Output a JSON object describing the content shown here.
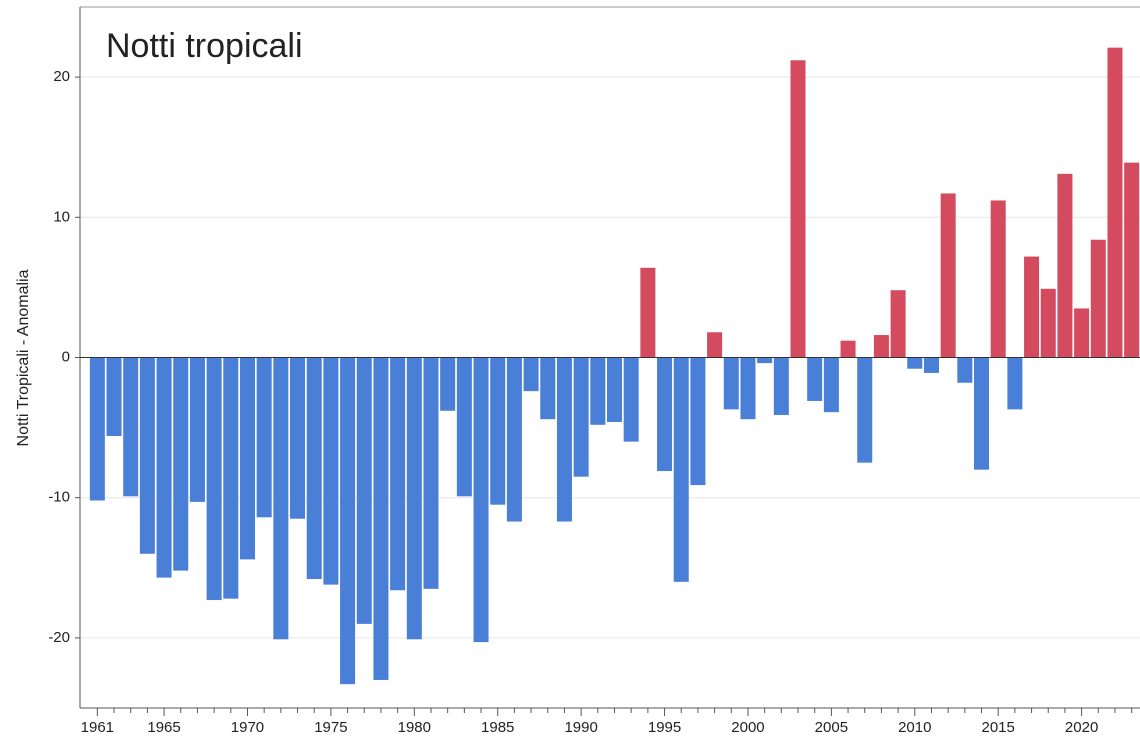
{
  "chart_data": {
    "type": "bar",
    "title": "Notti tropicali",
    "y_label": "Notti Tropicali - Anomalia",
    "categories": [
      "1961",
      null,
      null,
      null,
      "1965",
      null,
      null,
      null,
      null,
      "1970",
      null,
      null,
      null,
      null,
      "1975",
      null,
      null,
      null,
      null,
      "1980",
      null,
      null,
      null,
      null,
      "1985",
      null,
      null,
      null,
      null,
      "1990",
      null,
      null,
      null,
      null,
      "1995",
      null,
      null,
      null,
      null,
      "2000",
      null,
      null,
      null,
      null,
      "2005",
      null,
      null,
      null,
      null,
      "2010",
      null,
      null,
      null,
      null,
      "2015",
      null,
      null,
      null,
      null,
      "2020",
      null,
      null,
      null
    ],
    "values": [
      -10.2,
      -5.6,
      -9.9,
      -14.0,
      -15.7,
      -15.2,
      -10.3,
      -17.3,
      -17.2,
      -14.4,
      -11.4,
      -20.1,
      -11.5,
      -15.8,
      -16.2,
      -23.3,
      -19.0,
      -23.0,
      -16.6,
      -20.1,
      -16.5,
      -3.8,
      -9.9,
      -20.3,
      -10.5,
      -11.7,
      -2.4,
      -4.4,
      -11.7,
      -8.5,
      -4.8,
      -4.6,
      -6.0,
      6.4,
      -8.1,
      -16.0,
      -9.1,
      1.8,
      -3.7,
      -4.4,
      -0.4,
      -4.1,
      21.2,
      -3.1,
      -3.9,
      1.2,
      -7.5,
      1.6,
      4.8,
      -0.8,
      -1.1,
      11.7,
      -1.8,
      -8.0,
      11.2,
      -3.7,
      7.2,
      4.9,
      13.1,
      3.5,
      8.4,
      22.1,
      13.9
    ],
    "positive_color": "#d44a5e",
    "negative_color": "#4a7fd8",
    "ylim": [
      -25,
      25
    ],
    "yticks": [
      -20,
      -10,
      0,
      10,
      20
    ],
    "grid": true
  }
}
